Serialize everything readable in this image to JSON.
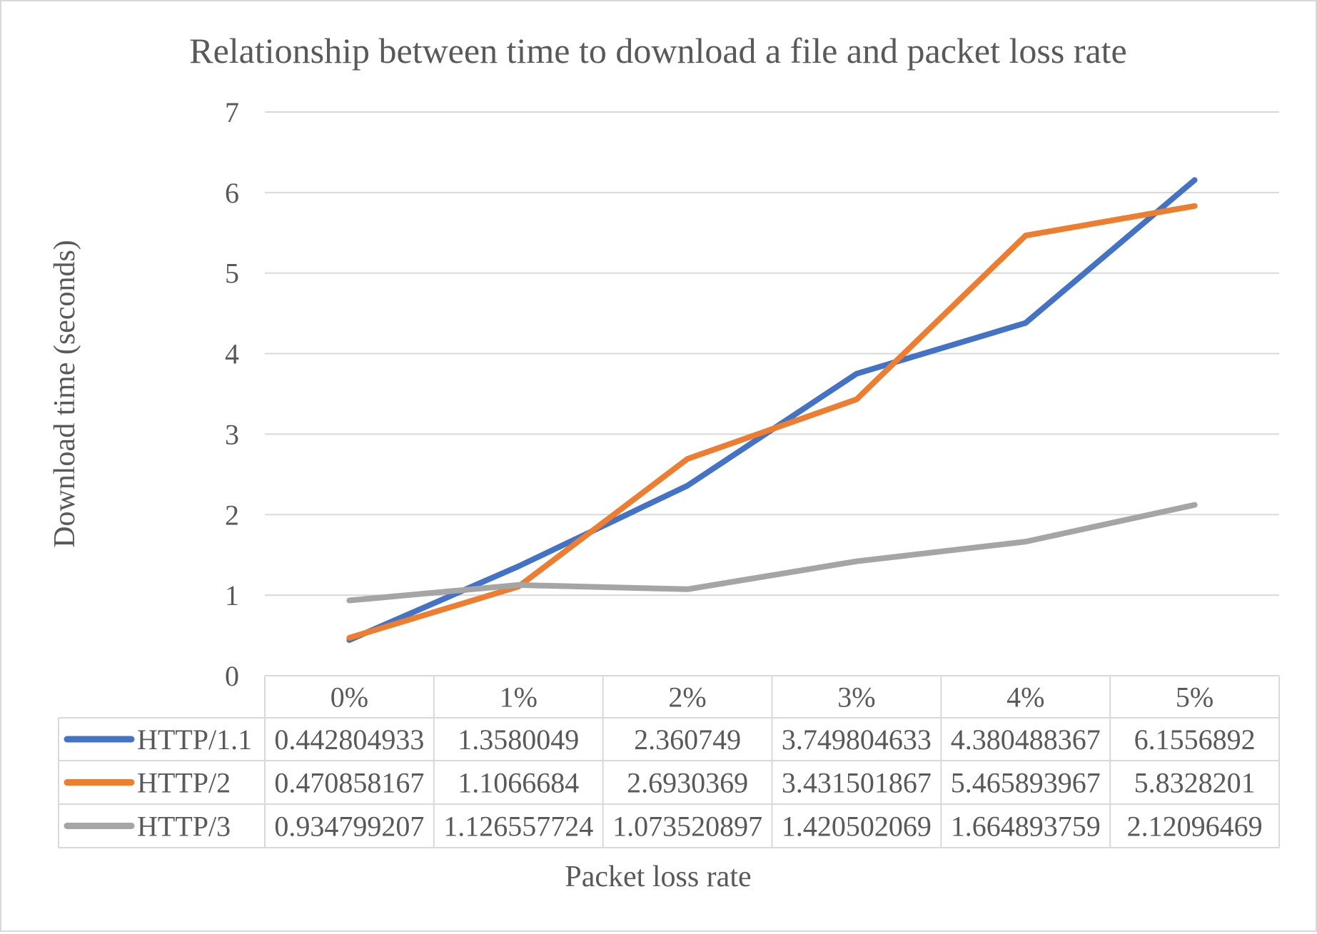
{
  "chart_data": {
    "type": "line",
    "title": "Relationship between time to download a file and packet loss rate",
    "xlabel": "Packet loss rate",
    "ylabel": "Download time (seconds)",
    "ylim": [
      0,
      7
    ],
    "yticks": [
      "0",
      "1",
      "2",
      "3",
      "4",
      "5",
      "6",
      "7"
    ],
    "grid": true,
    "legend": "data-table",
    "categories": [
      "0%",
      "1%",
      "2%",
      "3%",
      "4%",
      "5%"
    ],
    "series": [
      {
        "name": "HTTP/1.1",
        "color": "#4472c4",
        "values": [
          0.442804933,
          1.3580049,
          2.360749,
          3.749804633,
          4.380488367,
          6.1556892
        ],
        "labels": [
          "0.442804933",
          "1.3580049",
          "2.360749",
          "3.749804633",
          "4.380488367",
          "6.1556892"
        ]
      },
      {
        "name": "HTTP/2",
        "color": "#ed7d31",
        "values": [
          0.470858167,
          1.1066684,
          2.6930369,
          3.431501867,
          5.465893967,
          5.8328201
        ],
        "labels": [
          "0.470858167",
          "1.1066684",
          "2.6930369",
          "3.431501867",
          "5.465893967",
          "5.8328201"
        ]
      },
      {
        "name": "HTTP/3",
        "color": "#a5a5a5",
        "values": [
          0.934799207,
          1.126557724,
          1.073520897,
          1.420502069,
          1.664893759,
          2.12096469
        ],
        "labels": [
          "0.934799207",
          "1.126557724",
          "1.073520897",
          "1.420502069",
          "1.664893759",
          "2.12096469"
        ]
      }
    ]
  }
}
